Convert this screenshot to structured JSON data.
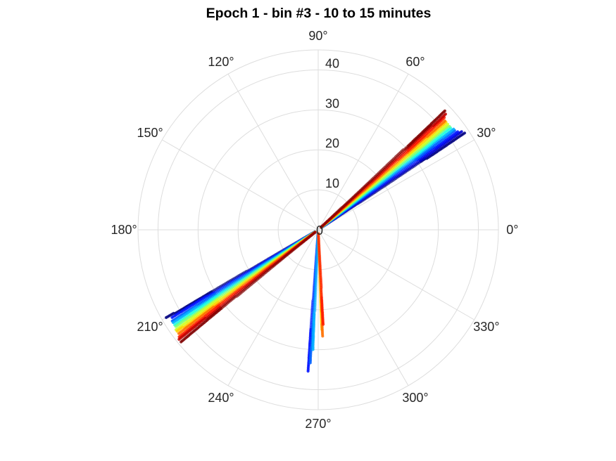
{
  "chart_data": {
    "type": "scatter",
    "projection": "polar",
    "title": "Epoch 1 - bin #3 - 10 to 15 minutes",
    "angle_ticks": [
      "0°",
      "30°",
      "60°",
      "90°",
      "120°",
      "150°",
      "180°",
      "210°",
      "240°",
      "270°",
      "300°",
      "330°"
    ],
    "angle_tick_values_deg": [
      0,
      30,
      60,
      90,
      120,
      150,
      180,
      210,
      240,
      270,
      300,
      330
    ],
    "radial_ticks": [
      "0",
      "10",
      "20",
      "30",
      "40"
    ],
    "radial_tick_values": [
      0,
      10,
      20,
      30,
      40
    ],
    "rlim": [
      0,
      45
    ],
    "grid": true,
    "colormap": "jet",
    "legend": "none",
    "series": [
      {
        "theta_deg": 33.5,
        "r_min": 1,
        "r_max": 44.0,
        "color": "#00007f"
      },
      {
        "theta_deg": 34.3,
        "r_min": 1,
        "r_max": 43.5,
        "color": "#0000d0"
      },
      {
        "theta_deg": 35.2,
        "r_min": 1,
        "r_max": 43.0,
        "color": "#0010ff"
      },
      {
        "theta_deg": 36.0,
        "r_min": 1,
        "r_max": 42.5,
        "color": "#0060ff"
      },
      {
        "theta_deg": 36.8,
        "r_min": 1,
        "r_max": 42.2,
        "color": "#00b0ff"
      },
      {
        "theta_deg": 37.6,
        "r_min": 1,
        "r_max": 42.0,
        "color": "#20ffdf"
      },
      {
        "theta_deg": 38.4,
        "r_min": 1,
        "r_max": 41.8,
        "color": "#7dff7a"
      },
      {
        "theta_deg": 39.2,
        "r_min": 1,
        "r_max": 41.8,
        "color": "#d0ff27"
      },
      {
        "theta_deg": 40.0,
        "r_min": 1,
        "r_max": 41.8,
        "color": "#ffd000"
      },
      {
        "theta_deg": 40.8,
        "r_min": 1,
        "r_max": 42.0,
        "color": "#ff7000"
      },
      {
        "theta_deg": 41.6,
        "r_min": 1,
        "r_max": 42.5,
        "color": "#ff1a00"
      },
      {
        "theta_deg": 42.4,
        "r_min": 1,
        "r_max": 43.2,
        "color": "#c00000"
      },
      {
        "theta_deg": 43.2,
        "r_min": 1,
        "r_max": 43.8,
        "color": "#7f0000"
      },
      {
        "theta_deg": 210.2,
        "r_min": 1,
        "r_max": 44.0,
        "color": "#00007f"
      },
      {
        "theta_deg": 211.0,
        "r_min": 1,
        "r_max": 43.0,
        "color": "#0010ff"
      },
      {
        "theta_deg": 211.9,
        "r_min": 1,
        "r_max": 43.2,
        "color": "#0060ff"
      },
      {
        "theta_deg": 212.7,
        "r_min": 1,
        "r_max": 43.2,
        "color": "#00b0ff"
      },
      {
        "theta_deg": 213.5,
        "r_min": 1,
        "r_max": 43.3,
        "color": "#20ffdf"
      },
      {
        "theta_deg": 214.3,
        "r_min": 1,
        "r_max": 43.4,
        "color": "#7dff7a"
      },
      {
        "theta_deg": 215.1,
        "r_min": 1,
        "r_max": 43.5,
        "color": "#d0ff27"
      },
      {
        "theta_deg": 215.9,
        "r_min": 1,
        "r_max": 43.6,
        "color": "#ffd000"
      },
      {
        "theta_deg": 216.7,
        "r_min": 1,
        "r_max": 43.8,
        "color": "#ff7000"
      },
      {
        "theta_deg": 217.5,
        "r_min": 1,
        "r_max": 44.2,
        "color": "#ff1a00"
      },
      {
        "theta_deg": 218.3,
        "r_min": 1,
        "r_max": 44.4,
        "color": "#c00000"
      },
      {
        "theta_deg": 219.2,
        "r_min": 1,
        "r_max": 44.6,
        "color": "#7f0000"
      },
      {
        "theta_deg": 265.8,
        "r_min": 1,
        "r_max": 35.5,
        "color": "#0010ff"
      },
      {
        "theta_deg": 266.7,
        "r_min": 1,
        "r_max": 33.5,
        "color": "#0060ff"
      },
      {
        "theta_deg": 267.5,
        "r_min": 1,
        "r_max": 30.0,
        "color": "#00b0ff"
      },
      {
        "theta_deg": 272.0,
        "r_min": 1,
        "r_max": 25.0,
        "color": "#ffd000"
      },
      {
        "theta_deg": 272.5,
        "r_min": 1,
        "r_max": 27.0,
        "color": "#ff7000"
      },
      {
        "theta_deg": 273.0,
        "r_min": 1,
        "r_max": 24.0,
        "color": "#ff1a00"
      }
    ]
  }
}
